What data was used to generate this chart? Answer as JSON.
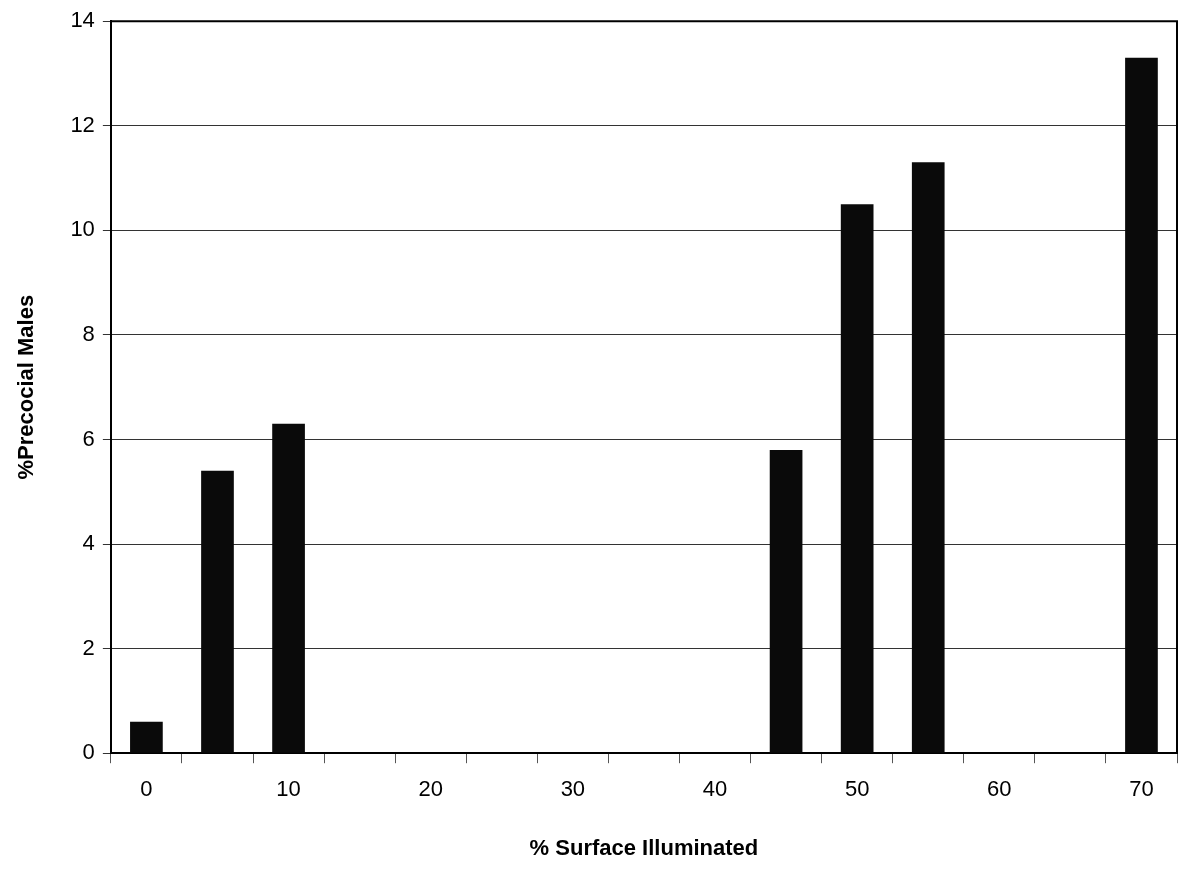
{
  "chart_data": {
    "type": "bar",
    "xlabel": "% Surface Illuminated",
    "ylabel": "%Precocial Males",
    "categories": [
      "0",
      null,
      "10",
      null,
      "20",
      null,
      "30",
      null,
      "40",
      null,
      "50",
      null,
      "60",
      null,
      "70"
    ],
    "values": [
      0.6,
      5.4,
      6.3,
      null,
      null,
      null,
      null,
      null,
      null,
      5.8,
      10.5,
      11.3,
      null,
      null,
      13.3
    ],
    "color": "#0a0a0a",
    "ylim": [
      0,
      14
    ],
    "yticks": [
      0,
      2,
      4,
      6,
      8,
      10,
      12,
      14
    ],
    "grid": "y",
    "legend": false
  }
}
